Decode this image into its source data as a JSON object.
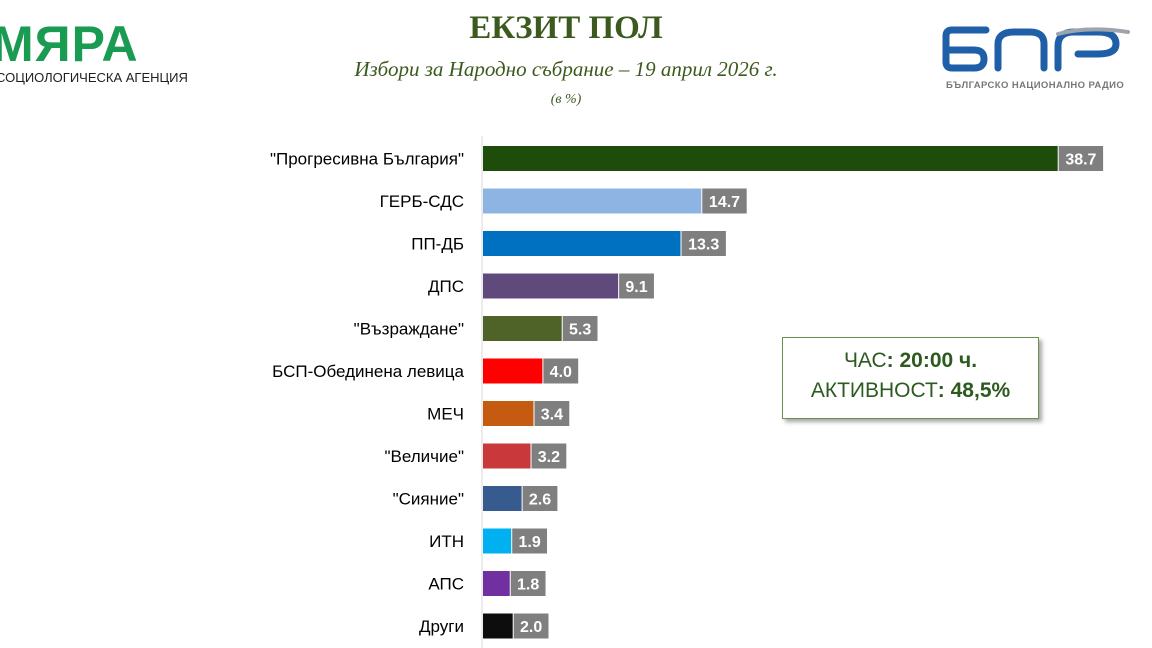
{
  "header": {
    "title": "ЕКЗИТ ПОЛ",
    "subtitle": "Избори за Народно събрание – 19 април 2026 г.",
    "unit": "(в %)"
  },
  "logo_left": {
    "word": "МЯРА",
    "sub": "СОЦИОЛОГИЧЕСКА АГЕНЦИЯ",
    "color": "#1a9b52"
  },
  "logo_right": {
    "sub": "БЪЛГАРСКО НАЦИОНАЛНО РАДИО",
    "color": "#1f5fa8"
  },
  "info": {
    "time_label": "ЧАС",
    "time_value": ": 20:00 ч.",
    "turnout_label": "АКТИВНОСТ",
    "turnout_value": ": 48,5%"
  },
  "chart_data": {
    "type": "bar",
    "orientation": "horizontal",
    "categories": [
      "\"Прогресивна България\"",
      "ГЕРБ-СДС",
      "ПП-ДБ",
      "ДПС",
      "\"Възраждане\"",
      "БСП-Обединена левица",
      "МЕЧ",
      "\"Величие\"",
      "\"Сияние\"",
      "ИТН",
      "АПС",
      "Други"
    ],
    "values": [
      38.7,
      14.7,
      13.3,
      9.1,
      5.3,
      4.0,
      3.4,
      3.2,
      2.6,
      1.9,
      1.8,
      2.0
    ],
    "value_labels": [
      "38.7",
      "14.7",
      "13.3",
      "9.1",
      "5.3",
      "4.0",
      "3.4",
      "3.2",
      "2.6",
      "1.9",
      "1.8",
      "2.0"
    ],
    "colors": [
      "#1e4d0b",
      "#8db4e2",
      "#0070c0",
      "#604a7b",
      "#4f6228",
      "#ff0000",
      "#c55a11",
      "#c9383a",
      "#375b8e",
      "#00b0f0",
      "#7030a0",
      "#0d0d0d"
    ],
    "label_box_color": "#7f7f7f",
    "xlim": [
      0,
      40
    ]
  }
}
